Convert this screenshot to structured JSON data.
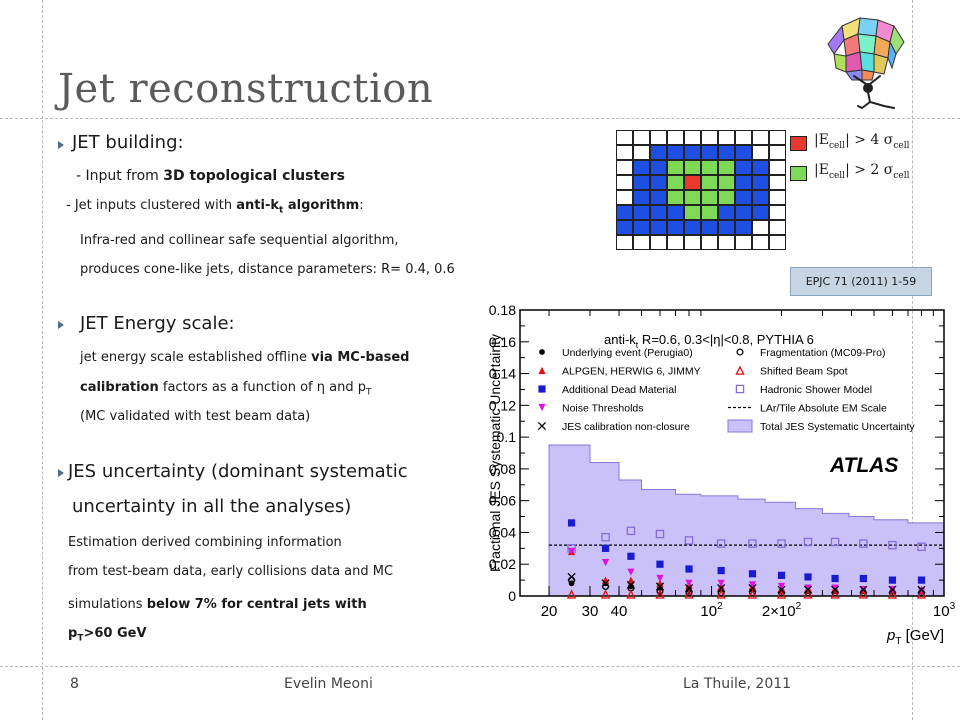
{
  "slide": {
    "title": "Jet reconstruction",
    "page_number": "8",
    "author": "Evelin Meoni",
    "venue": "La Thuile, 2011"
  },
  "section1": {
    "heading": "JET building:",
    "line1_a": "- Input from ",
    "line1_b": "3D topological clusters",
    "line2_a": "- Jet inputs clustered with ",
    "line2_b": "anti-k",
    "line2_sub": "t",
    "line2_c": " algorithm",
    "line2_d": ":",
    "line3": "Infra-red and collinear safe sequential algorithm,",
    "line4": "produces cone-like jets, distance parameters: R= 0.4, 0.6"
  },
  "section2": {
    "heading": "JET Energy scale:",
    "line1_a": "jet energy scale established offline ",
    "line1_b": "via MC-based",
    "line2_a": "calibration",
    "line2_b": " factors as a function of η and p",
    "line2_sub": "T",
    "line3": "(MC validated with test beam data)"
  },
  "section3": {
    "heading_line1": "JES uncertainty (dominant systematic",
    "heading_line2": "uncertainty in all the analyses)",
    "line1": "Estimation derived combining information",
    "line2": "from test-beam data, early collisions data and MC",
    "line3_a": "simulations ",
    "line3_b": "below 7% for central jets with",
    "line4_a": "p",
    "line4_sub": "T",
    "line4_b": ">60 GeV"
  },
  "cluster_diagram": {
    "legend_red": "|E",
    "legend_red_sub": "cell",
    "legend_red_rest": "| > 4 σ",
    "legend_red_sub2": "cell",
    "legend_green": "|E",
    "legend_green_sub": "cell",
    "legend_green_rest": "| > 2 σ",
    "legend_green_sub2": "cell",
    "colors": {
      "red": "#e8392c",
      "green": "#7ed957",
      "blue": "#1f4fe0",
      "empty": "#ffffff"
    },
    "rows": [
      "wwwwwwwwww",
      "wwbbbbbbww",
      "wbbggggbbw",
      "wbbgrggbbw",
      "wbbggggbbw",
      "bbbbggbbbw",
      "bbbbbbbbww",
      "wwwwwwwwww"
    ]
  },
  "reference": "EPJC 71 (2011) 1-59",
  "chart_data": {
    "type": "scatter",
    "xlabel": "p",
    "xlabel_sub": "T",
    "xlabel_unit": " [GeV]",
    "ylabel": "Fractional JES Systematic Uncertainty",
    "x_scale": "log",
    "xlim": [
      15,
      1000
    ],
    "ylim": [
      0,
      0.18
    ],
    "y_ticks": [
      "0",
      "0.02",
      "0.04",
      "0.06",
      "0.08",
      "0.1",
      "0.12",
      "0.14",
      "0.16",
      "0.18"
    ],
    "y_tick_values": [
      0,
      0.02,
      0.04,
      0.06,
      0.08,
      0.1,
      0.12,
      0.14,
      0.16,
      0.18
    ],
    "x_ticks": [
      {
        "v": 20,
        "label": "20"
      },
      {
        "v": 30,
        "label": "30"
      },
      {
        "v": 40,
        "label": "40"
      },
      {
        "v": 100,
        "label": "10",
        "sup": "2"
      },
      {
        "v": 200,
        "label": "2×10",
        "sup": "2"
      },
      {
        "v": 1000,
        "label": "10",
        "sup": "3"
      }
    ],
    "header": "anti-k",
    "header_sub": "t",
    "header_rest": " R=0.6, 0.3<|η|<0.8, PYTHIA 6",
    "watermark": "ATLAS",
    "bin_centers": [
      25,
      35,
      45,
      60,
      80,
      110,
      150,
      200,
      260,
      340,
      450,
      600,
      800
    ],
    "band": {
      "name": "Total JES Systematic Uncertainty",
      "edges": [
        20,
        30,
        40,
        50,
        70,
        90,
        130,
        170,
        230,
        300,
        390,
        500,
        700,
        1000
      ],
      "values": [
        0.095,
        0.084,
        0.073,
        0.067,
        0.064,
        0.063,
        0.061,
        0.059,
        0.055,
        0.052,
        0.05,
        0.048,
        0.046
      ],
      "color": "#c9c1f7",
      "edge_color": "#8878d8"
    },
    "em_scale": {
      "name": "LAr/Tile Absolute EM Scale",
      "value": 0.032
    },
    "series": [
      {
        "name": "Underlying event (Perugia0)",
        "marker": "circle-filled",
        "color": "#000000",
        "x": [
          25,
          35,
          45,
          60,
          80,
          110,
          150,
          200,
          260,
          340,
          450,
          600,
          800
        ],
        "y": [
          0.008,
          0.008,
          0.006,
          0.005,
          0.004,
          0.004,
          0.004,
          0.003,
          0.003,
          0.003,
          0.003,
          0.003,
          0.003
        ]
      },
      {
        "name": "Fragmentation (MC09-Pro)",
        "marker": "circle-open",
        "color": "#000000",
        "x": [
          25,
          35,
          45,
          60,
          80,
          110,
          150,
          200,
          260,
          340,
          450,
          600,
          800
        ],
        "y": [
          0.01,
          0.006,
          0.005,
          0.003,
          0.002,
          0.002,
          0.002,
          0.002,
          0.002,
          0.002,
          0.002,
          0.002,
          0.002
        ]
      },
      {
        "name": "ALPGEN, HERWIG 6, JIMMY",
        "marker": "triangle-filled",
        "color": "#e01010",
        "x": [
          25,
          35,
          45,
          60,
          80,
          110,
          150,
          200,
          260,
          340,
          450,
          600,
          800
        ],
        "y": [
          0.028,
          0.01,
          0.01,
          0.008,
          0.007,
          0.006,
          0.006,
          0.005,
          0.005,
          0.005,
          0.004,
          0.004,
          0.004
        ]
      },
      {
        "name": "Shifted Beam Spot",
        "marker": "triangle-open",
        "color": "#e01010",
        "x": [
          25,
          35,
          45,
          60,
          80,
          110,
          150,
          200,
          260,
          340,
          450,
          600,
          800
        ],
        "y": [
          0.001,
          0.001,
          0.001,
          0.001,
          0.001,
          0.001,
          0.001,
          0.001,
          0.001,
          0.001,
          0.001,
          0.001,
          0.001
        ]
      },
      {
        "name": "Additional Dead Material",
        "marker": "square-filled",
        "color": "#1a1ad0",
        "x": [
          25,
          35,
          45,
          60,
          80,
          110,
          150,
          200,
          260,
          340,
          450,
          600,
          800
        ],
        "y": [
          0.046,
          0.03,
          0.025,
          0.02,
          0.017,
          0.016,
          0.014,
          0.013,
          0.012,
          0.011,
          0.011,
          0.01,
          0.01
        ]
      },
      {
        "name": "Hadronic Shower Model",
        "marker": "square-open",
        "color": "#8a6ae0",
        "x": [
          25,
          35,
          45,
          60,
          80,
          110,
          150,
          200,
          260,
          340,
          450,
          600,
          800
        ],
        "y": [
          0.03,
          0.037,
          0.041,
          0.039,
          0.035,
          0.033,
          0.033,
          0.033,
          0.034,
          0.034,
          0.033,
          0.032,
          0.031
        ]
      },
      {
        "name": "Noise Thresholds",
        "marker": "triangle-down-filled",
        "color": "#e010e0",
        "x": [
          25,
          35,
          45,
          60,
          80,
          110,
          150,
          200,
          260,
          340,
          450,
          600,
          800
        ],
        "y": [
          0.028,
          0.021,
          0.015,
          0.011,
          0.008,
          0.008,
          0.007,
          0.006,
          0.005,
          0.005,
          0.004,
          0.004,
          0.003
        ]
      },
      {
        "name": "JES calibration non-closure",
        "marker": "cross",
        "color": "#000000",
        "x": [
          25,
          35,
          45,
          60,
          80,
          110,
          150,
          200,
          260,
          340,
          450,
          600,
          800
        ],
        "y": [
          0.012,
          0.008,
          0.007,
          0.006,
          0.005,
          0.005,
          0.005,
          0.004,
          0.004,
          0.004,
          0.004,
          0.004,
          0.004
        ]
      }
    ],
    "legend_placement": "top",
    "legend_left": [
      {
        "marker": "circle-filled",
        "color": "#000000",
        "label": "Underlying event (Perugia0)"
      },
      {
        "marker": "triangle-filled",
        "color": "#e01010",
        "label": "ALPGEN, HERWIG 6, JIMMY"
      },
      {
        "marker": "square-filled",
        "color": "#1a1ad0",
        "label": "Additional Dead Material"
      },
      {
        "marker": "triangle-down-filled",
        "color": "#e010e0",
        "label": "Noise Thresholds"
      },
      {
        "marker": "cross",
        "color": "#000000",
        "label": "JES calibration non-closure"
      }
    ],
    "legend_right": [
      {
        "marker": "circle-open",
        "color": "#000000",
        "label": "Fragmentation (MC09-Pro)"
      },
      {
        "marker": "triangle-open",
        "color": "#e01010",
        "label": "Shifted Beam Spot"
      },
      {
        "marker": "square-open",
        "color": "#8a6ae0",
        "label": "Hadronic Shower Model"
      },
      {
        "marker": "dashed-line",
        "color": "#000000",
        "label": "LAr/Tile Absolute EM Scale"
      },
      {
        "marker": "band",
        "color": "#c9c1f7",
        "label": "Total JES Systematic Uncertainty"
      }
    ]
  }
}
